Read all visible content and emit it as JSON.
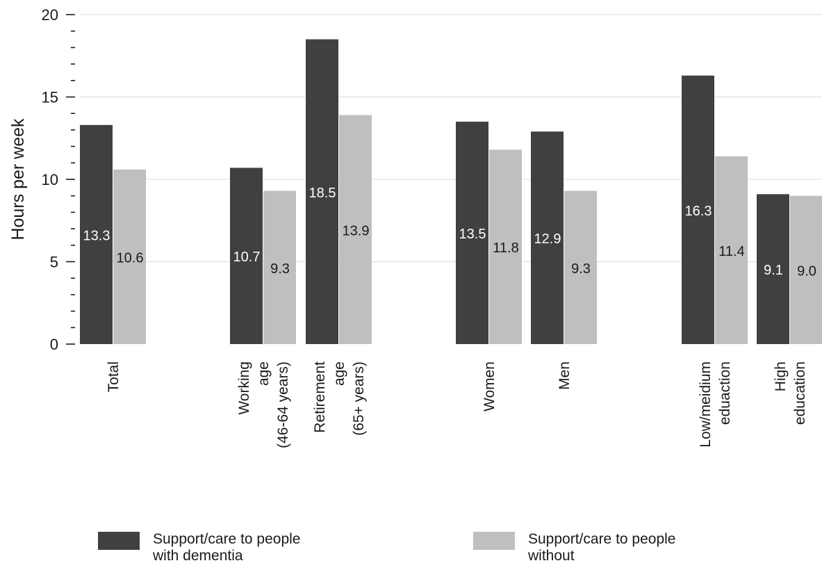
{
  "chart_data": {
    "type": "bar",
    "title": "",
    "ylabel": "Hours per week",
    "xlabel": "",
    "ylim": [
      0,
      20
    ],
    "yticks": [
      "0",
      "5",
      "10",
      "15",
      "20"
    ],
    "grid": "horizontal",
    "legend_position": "bottom",
    "categories": [
      [
        "Total"
      ],
      [
        "Working",
        "age",
        "(46-64 years)"
      ],
      [
        "Retirement",
        "age",
        "(65+ years)"
      ],
      [
        "Women"
      ],
      [
        "Men"
      ],
      [
        "Low/meidium",
        "eduaction"
      ],
      [
        "High",
        "education"
      ]
    ],
    "series": [
      {
        "name": "Support/care to people with dementia",
        "color": "#404040",
        "values": [
          13.3,
          10.7,
          18.5,
          13.5,
          12.9,
          16.3,
          9.1
        ],
        "labels": [
          "13.3",
          "10.7",
          "18.5",
          "13.5",
          "12.9",
          "16.3",
          "9.1"
        ]
      },
      {
        "name": "Support/care to people without",
        "color": "#bfbfbf",
        "values": [
          10.6,
          9.3,
          13.9,
          11.8,
          9.3,
          11.4,
          9.0
        ],
        "labels": [
          "10.6",
          "9.3",
          "13.9",
          "11.8",
          "9.3",
          "11.4",
          "9.0"
        ]
      }
    ]
  },
  "legend": [
    {
      "lines": [
        "Support/care to people",
        "with dementia"
      ],
      "color": "#404040"
    },
    {
      "lines": [
        "Support/care to people",
        "without"
      ],
      "color": "#bfbfbf"
    }
  ]
}
